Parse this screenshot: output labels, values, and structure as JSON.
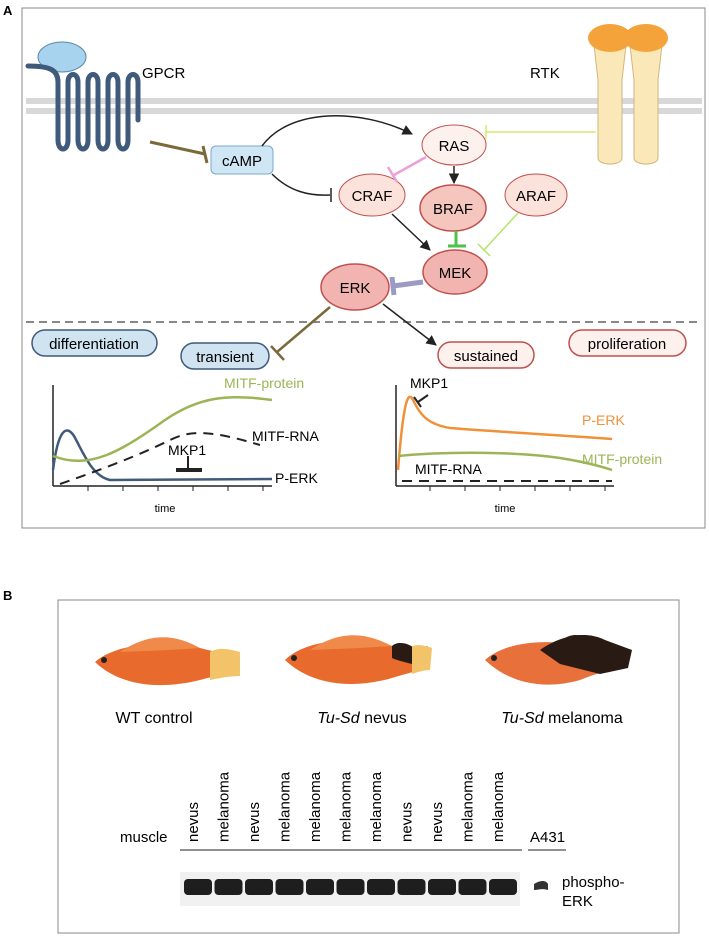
{
  "panel_a": {
    "label": "A",
    "receptors": {
      "gpcr": "GPCR",
      "rtk": "RTK"
    },
    "nodes": {
      "camp": "cAMP",
      "ras": "RAS",
      "craf": "CRAF",
      "braf": "BRAF",
      "araf": "ARAF",
      "mek": "MEK",
      "erk": "ERK"
    },
    "outcomes": {
      "differentiation": "differentiation",
      "transient": "transient",
      "sustained": "sustained",
      "proliferation": "proliferation"
    },
    "left_plot": {
      "mitf_protein": "MITF-protein",
      "mitf_rna": "MITF-RNA",
      "mkp1": "MKP1",
      "p_erk": "P-ERK",
      "xlabel": "time"
    },
    "right_plot": {
      "mkp1": "MKP1",
      "p_erk": "P-ERK",
      "mitf_protein": "MITF-protein",
      "mitf_rna": "MITF-RNA",
      "xlabel": "time"
    },
    "colors": {
      "gpcr": "#3f5a7a",
      "camp_fill": "#cfe6f5",
      "node_fill": "#f7d6cf",
      "node_stroke": "#c0504d",
      "outcome_fill": "#cfe3f0",
      "mitf_protein": "#9bb556",
      "p_erk_right": "#f0913a",
      "p_erk_left": "#3f5a7a"
    }
  },
  "panel_b": {
    "label": "B",
    "fish": [
      {
        "label_plain": "WT control",
        "label_italic": "",
        "label_rest": ""
      },
      {
        "label_plain": "",
        "label_italic": "Tu-Sd",
        "label_rest": " nevus"
      },
      {
        "label_plain": "",
        "label_italic": "Tu-Sd",
        "label_rest": " melanoma"
      }
    ],
    "blot": {
      "muscle": "muscle",
      "lanes": [
        "nevus",
        "melanoma",
        "nevus",
        "melanoma",
        "melanoma",
        "melanoma",
        "melanoma",
        "nevus",
        "nevus",
        "melanoma",
        "melanoma"
      ],
      "control": "A431",
      "band_label_1": "phospho-",
      "band_label_2": "ERK"
    }
  }
}
